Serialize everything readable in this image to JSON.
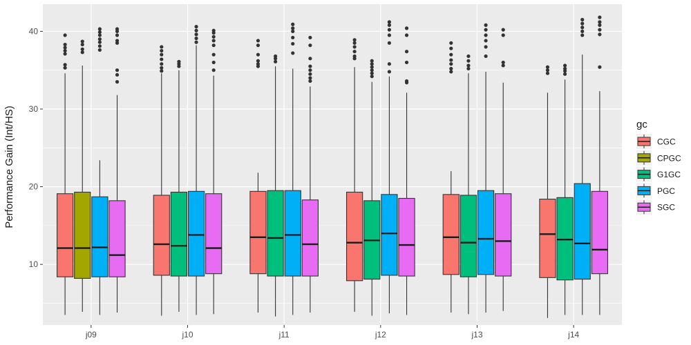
{
  "chart_data": {
    "type": "boxplot",
    "ylabel": "Performance Gain (Int/HS)",
    "xlabel": "",
    "ylim": [
      2.2,
      43.5
    ],
    "yticks": [
      10,
      20,
      30,
      40
    ],
    "grid": true,
    "legend": {
      "title": "gc",
      "position": "right"
    },
    "groups": [
      "j09",
      "j10",
      "j11",
      "j12",
      "j13",
      "j14"
    ],
    "series": [
      {
        "name": "CGC",
        "color": "#F8766D"
      },
      {
        "name": "CPGC",
        "color": "#A3A500"
      },
      {
        "name": "G1GC",
        "color": "#00BF7D"
      },
      {
        "name": "PGC",
        "color": "#00B0F6"
      },
      {
        "name": "SGC",
        "color": "#E76BF3"
      }
    ],
    "boxes": [
      {
        "group": "j09",
        "gc": "CGC",
        "whisker_low": 3.5,
        "q1": 8.4,
        "median": 12.1,
        "q3": 19.1,
        "whisker_high": 34.6,
        "outliers": [
          35.3,
          35.7,
          37.1,
          37.5,
          37.9,
          38.3,
          39.5
        ]
      },
      {
        "group": "j09",
        "gc": "CPGC",
        "whisker_low": 3.9,
        "q1": 8.2,
        "median": 12.1,
        "q3": 19.3,
        "whisker_high": 35.6,
        "outliers": [
          37.3,
          37.7,
          38.3,
          38.7
        ]
      },
      {
        "group": "j09",
        "gc": "PGC",
        "whisker_low": 3.5,
        "q1": 8.4,
        "median": 12.2,
        "q3": 18.7,
        "whisker_high": 23.4,
        "outliers": []
      },
      {
        "group": "j09",
        "gc": "PGC",
        "whisker_low": 23.4,
        "q1": 23.4,
        "median": 23.4,
        "q3": 23.4,
        "whisker_high": 23.4,
        "outliers": [
          37.6,
          38.1,
          38.6,
          39.0,
          39.5,
          39.9,
          40.3
        ]
      },
      {
        "group": "j09",
        "gc": "SGC",
        "whisker_low": 3.8,
        "q1": 8.4,
        "median": 11.2,
        "q3": 18.2,
        "whisker_high": 31.8,
        "outliers": [
          33.5,
          34.4,
          35.0,
          38.5,
          38.8,
          39.5,
          40.0,
          40.3
        ]
      },
      {
        "group": "j10",
        "gc": "CGC",
        "whisker_low": 3.4,
        "q1": 8.6,
        "median": 12.6,
        "q3": 18.9,
        "whisker_high": 34.6,
        "outliers": [
          34.9,
          35.3,
          35.8,
          36.4,
          37.0,
          37.5,
          38.0
        ]
      },
      {
        "group": "j10",
        "gc": "G1GC",
        "whisker_low": 3.9,
        "q1": 8.5,
        "median": 12.4,
        "q3": 19.3,
        "whisker_high": 35.0,
        "outliers": [
          35.5,
          35.8,
          36.1
        ]
      },
      {
        "group": "j10",
        "gc": "PGC",
        "whisker_low": 3.5,
        "q1": 8.5,
        "median": 13.8,
        "q3": 19.4,
        "whisker_high": 38.2,
        "outliers": [
          38.6,
          39.1,
          39.6,
          40.1,
          40.6
        ]
      },
      {
        "group": "j10",
        "gc": "SGC",
        "whisker_low": 3.6,
        "q1": 8.8,
        "median": 12.1,
        "q3": 19.1,
        "whisker_high": 34.3,
        "outliers": [
          35.0,
          36.0,
          37.0,
          38.2,
          38.8,
          39.3,
          39.8,
          40.1
        ]
      },
      {
        "group": "j11",
        "gc": "CGC",
        "whisker_low": 3.8,
        "q1": 8.8,
        "median": 13.5,
        "q3": 19.4,
        "whisker_high": 21.8,
        "outliers": [
          35.5,
          35.8,
          36.2,
          37.0,
          38.2,
          38.8
        ]
      },
      {
        "group": "j11",
        "gc": "G1GC",
        "whisker_low": 3.3,
        "q1": 8.5,
        "median": 13.4,
        "q3": 19.5,
        "whisker_high": 35.5,
        "outliers": [
          36.1,
          36.5,
          36.8
        ]
      },
      {
        "group": "j11",
        "gc": "PGC",
        "whisker_low": 3.5,
        "q1": 8.5,
        "median": 13.8,
        "q3": 19.5,
        "whisker_high": 35.2,
        "outliers": [
          37.2,
          38.4,
          39.2,
          40.0,
          40.4,
          40.9
        ]
      },
      {
        "group": "j11",
        "gc": "SGC",
        "whisker_low": 3.8,
        "q1": 8.5,
        "median": 12.6,
        "q3": 18.3,
        "whisker_high": 32.9,
        "outliers": [
          33.6,
          34.0,
          34.5,
          35.0,
          35.5,
          36.5,
          38.2,
          39.2
        ]
      },
      {
        "group": "j12",
        "gc": "CGC",
        "whisker_low": 3.9,
        "q1": 7.9,
        "median": 12.8,
        "q3": 19.3,
        "whisker_high": 35.4,
        "outliers": [
          36.5,
          36.8,
          37.4,
          38.0,
          38.5,
          38.9
        ]
      },
      {
        "group": "j12",
        "gc": "G1GC",
        "whisker_low": 3.4,
        "q1": 8.1,
        "median": 13.1,
        "q3": 18.2,
        "whisker_high": 33.5,
        "outliers": [
          34.2,
          34.6,
          35.0,
          35.4,
          35.8,
          36.2
        ]
      },
      {
        "group": "j12",
        "gc": "PGC",
        "whisker_low": 3.7,
        "q1": 8.6,
        "median": 14.0,
        "q3": 19.0,
        "whisker_high": 34.2,
        "outliers": [
          34.8,
          35.8,
          38.5,
          39.5,
          40.2,
          40.8,
          41.2
        ]
      },
      {
        "group": "j12",
        "gc": "SGC",
        "whisker_low": 3.5,
        "q1": 8.5,
        "median": 12.5,
        "q3": 18.5,
        "whisker_high": 32.1,
        "outliers": [
          33.4,
          33.6,
          36.0,
          37.4,
          39.5,
          40.4
        ]
      },
      {
        "group": "j13",
        "gc": "CGC",
        "whisker_low": 3.8,
        "q1": 8.7,
        "median": 13.5,
        "q3": 19.0,
        "whisker_high": 22.0,
        "outliers": [
          34.8,
          35.2,
          35.8,
          36.3,
          37.0,
          37.8,
          38.5
        ]
      },
      {
        "group": "j13",
        "gc": "G1GC",
        "whisker_low": 3.6,
        "q1": 8.4,
        "median": 12.8,
        "q3": 18.9,
        "whisker_high": 34.6,
        "outliers": [
          35.2,
          35.6,
          36.2,
          36.8
        ]
      },
      {
        "group": "j13",
        "gc": "PGC",
        "whisker_low": 3.8,
        "q1": 8.7,
        "median": 13.3,
        "q3": 19.5,
        "whisker_high": 34.8,
        "outliers": [
          36.8,
          38.0,
          38.8,
          39.5,
          40.2,
          40.8
        ]
      },
      {
        "group": "j13",
        "gc": "SGC",
        "whisker_low": 4.0,
        "q1": 8.5,
        "median": 13.0,
        "q3": 19.1,
        "whisker_high": 33.4,
        "outliers": [
          35.6,
          36.0,
          39.5,
          40.2
        ]
      },
      {
        "group": "j14",
        "gc": "CGC",
        "whisker_low": 3.1,
        "q1": 8.3,
        "median": 13.9,
        "q3": 18.4,
        "whisker_high": 32.1,
        "outliers": [
          34.6,
          35.0,
          35.4
        ]
      },
      {
        "group": "j14",
        "gc": "G1GC",
        "whisker_low": 3.5,
        "q1": 8.0,
        "median": 13.2,
        "q3": 18.6,
        "whisker_high": 33.8,
        "outliers": [
          34.5,
          34.9,
          35.2,
          35.6
        ]
      },
      {
        "group": "j14",
        "gc": "PGC",
        "whisker_low": 3.5,
        "q1": 8.1,
        "median": 12.7,
        "q3": 20.4,
        "whisker_high": 37.0,
        "outliers": [
          39.5,
          40.0,
          40.5,
          41.0,
          41.5
        ]
      },
      {
        "group": "j14",
        "gc": "SGC",
        "whisker_low": 3.5,
        "q1": 8.8,
        "median": 11.9,
        "q3": 19.4,
        "whisker_high": 32.3,
        "outliers": [
          35.4,
          39.6,
          40.2,
          40.8,
          41.2,
          41.8
        ]
      }
    ]
  }
}
